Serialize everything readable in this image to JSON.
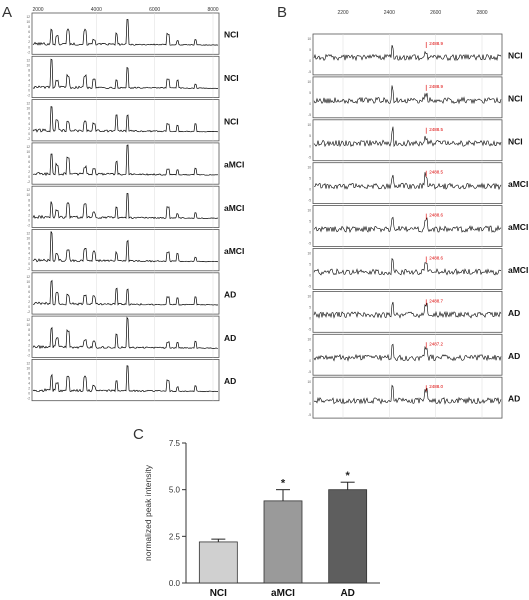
{
  "panel_labels": {
    "a": "A",
    "b": "B",
    "c": "C"
  },
  "chart_data": [
    {
      "type": "line",
      "panel": "A",
      "x_ticks": [
        "2000",
        "4000",
        "6000",
        "8000"
      ],
      "y_ticks": [
        "12",
        "10",
        "8",
        "6",
        "4",
        "2",
        "0",
        "-2"
      ],
      "rows": [
        {
          "label": "NCI"
        },
        {
          "label": "NCI"
        },
        {
          "label": "NCI"
        },
        {
          "label": "aMCI"
        },
        {
          "label": "aMCI"
        },
        {
          "label": "aMCI"
        },
        {
          "label": "AD"
        },
        {
          "label": "AD"
        },
        {
          "label": "AD"
        }
      ],
      "grid": true
    },
    {
      "type": "line",
      "panel": "B",
      "x_ticks": [
        "2200",
        "2400",
        "2600",
        "2800"
      ],
      "y_ticks": [
        "10",
        "5",
        "0",
        "-5"
      ],
      "rows": [
        {
          "label": "NCI",
          "annotation": "2488.9"
        },
        {
          "label": "NCI",
          "annotation": "2488.9"
        },
        {
          "label": "NCI",
          "annotation": "2488.5"
        },
        {
          "label": "aMCI",
          "annotation": "2488.5"
        },
        {
          "label": "aMCI",
          "annotation": "2488.6"
        },
        {
          "label": "aMCI",
          "annotation": "2488.6"
        },
        {
          "label": "AD",
          "annotation": "2488.7"
        },
        {
          "label": "AD",
          "annotation": "2487.2"
        },
        {
          "label": "AD",
          "annotation": "2488.0"
        }
      ],
      "grid": true
    },
    {
      "type": "bar",
      "panel": "C",
      "categories": [
        "NCI",
        "aMCI",
        "AD"
      ],
      "values": [
        2.2,
        4.4,
        5.0
      ],
      "errors": [
        0.15,
        0.6,
        0.4
      ],
      "significance": [
        "",
        "*",
        "*"
      ],
      "colors": [
        "#d0d0d0",
        "#9a9a9a",
        "#5e5e5e"
      ],
      "ylabel": "normalized peak intensity",
      "ylim": [
        0,
        7.5
      ],
      "y_ticks": [
        "0.0",
        "2.5",
        "5.0",
        "7.5"
      ]
    }
  ]
}
